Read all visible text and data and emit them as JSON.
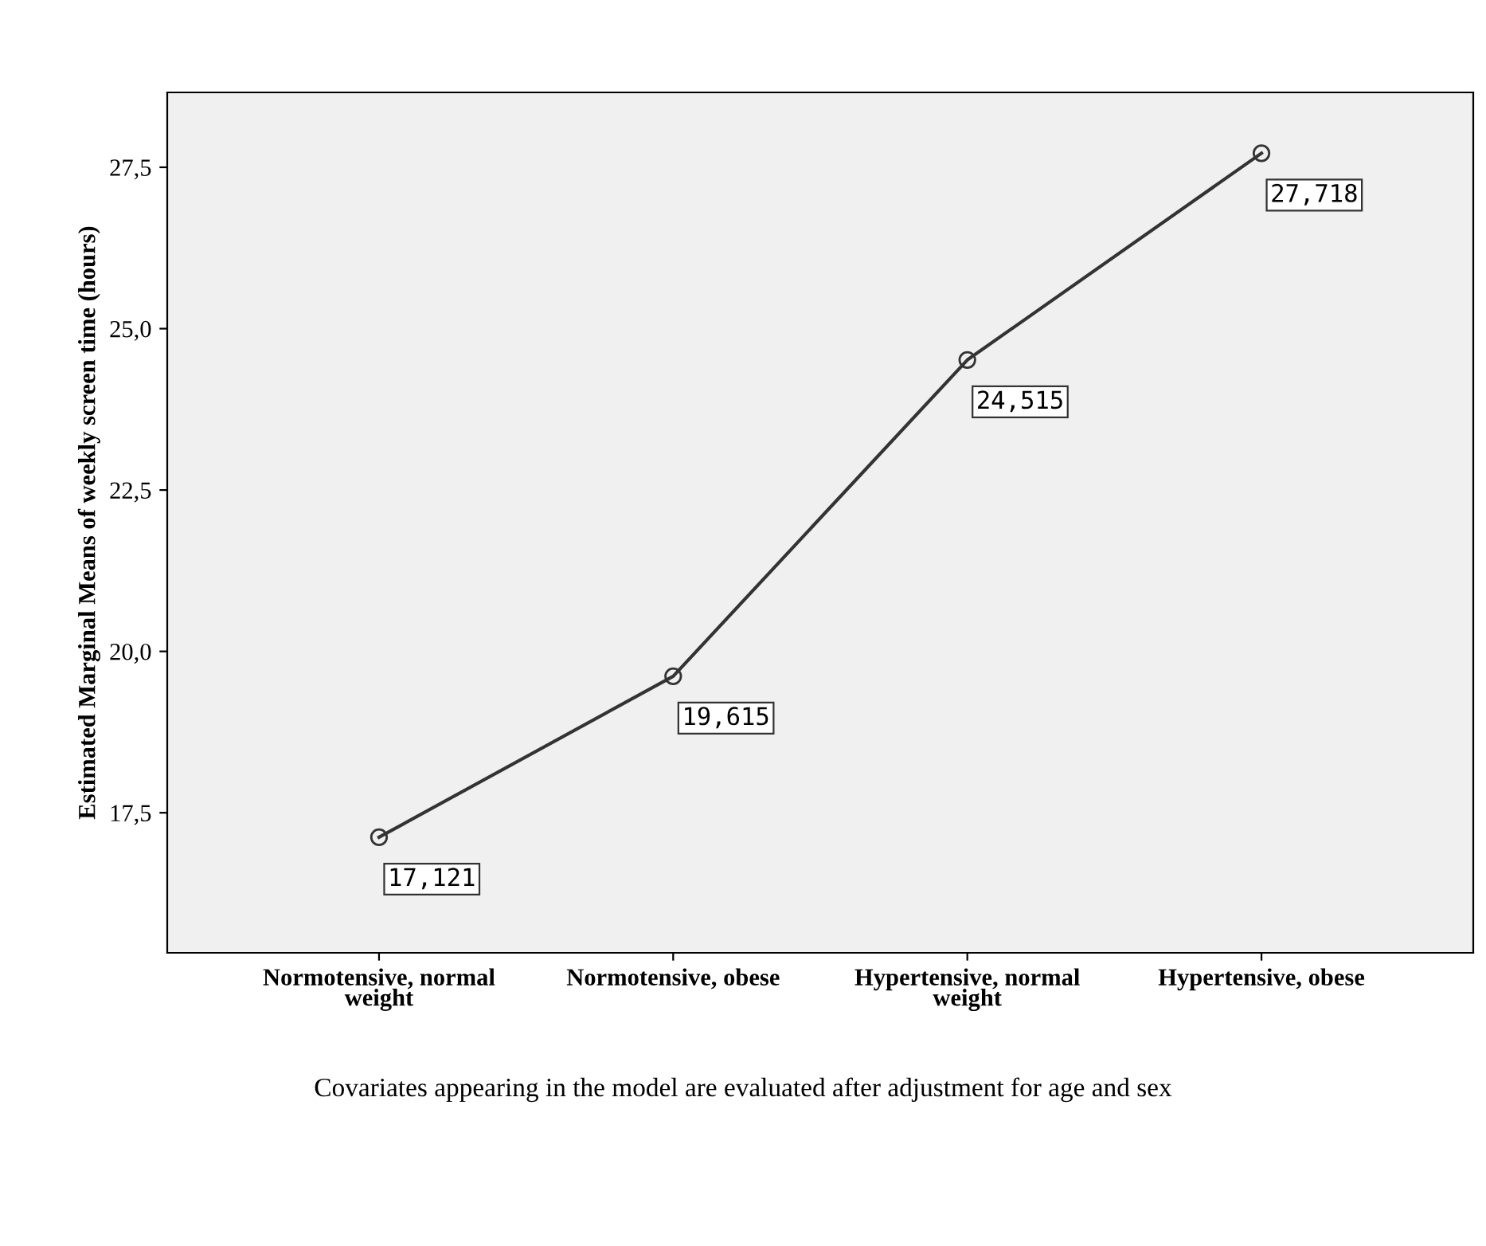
{
  "chart_data": {
    "type": "line",
    "ylabel": "Estimated Marginal Means of weekly screen time (hours)",
    "categories": [
      "Normotensive, normal\nweight",
      "Normotensive, obese",
      "Hypertensive, normal\nweight",
      "Hypertensive, obese"
    ],
    "series": [
      {
        "color": "#333333",
        "values": [
          17.121,
          19.615,
          24.515,
          27.718
        ]
      }
    ],
    "value_labels": [
      "17,121",
      "19,615",
      "24,515",
      "27,718"
    ],
    "ylim": [
      15.33,
      28.66
    ],
    "yticks": [
      {
        "value": 17.5,
        "label": "17,5"
      },
      {
        "value": 20.0,
        "label": "20,0"
      },
      {
        "value": 22.5,
        "label": "22,5"
      },
      {
        "value": 25.0,
        "label": "25,0"
      },
      {
        "value": 27.5,
        "label": "27,5"
      }
    ],
    "marker": "circle",
    "line_style": "solid",
    "grid": false,
    "legend": false,
    "annotations": [
      "Covariates appearing in the model are evaluated after adjustment for age and sex"
    ]
  }
}
